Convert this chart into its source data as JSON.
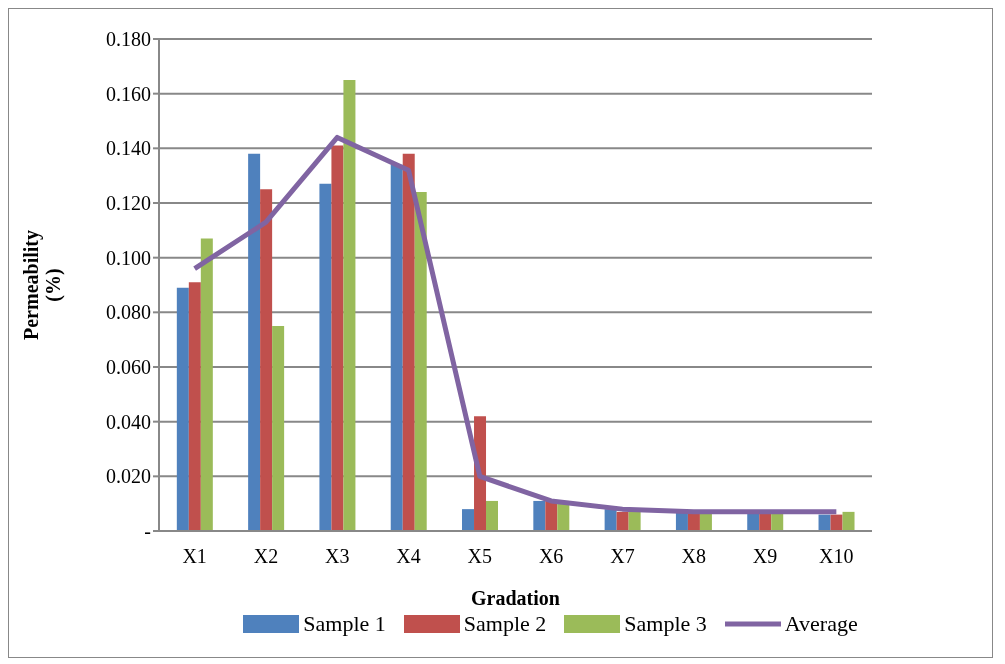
{
  "chart_data": {
    "type": "bar",
    "xlabel": "Gradation",
    "ylabel": "Permeability (%)",
    "categories": [
      "X1",
      "X2",
      "X3",
      "X4",
      "X5",
      "X6",
      "X7",
      "X8",
      "X9",
      "X10"
    ],
    "series": [
      {
        "name": "Sample 1",
        "color": "#4f81bd",
        "values": [
          0.089,
          0.138,
          0.127,
          0.134,
          0.008,
          0.011,
          0.008,
          0.007,
          0.007,
          0.006
        ]
      },
      {
        "name": "Sample 2",
        "color": "#c0504d",
        "values": [
          0.091,
          0.125,
          0.141,
          0.138,
          0.042,
          0.011,
          0.007,
          0.007,
          0.007,
          0.006
        ]
      },
      {
        "name": "Sample 3",
        "color": "#9bbb59",
        "values": [
          0.107,
          0.075,
          0.165,
          0.124,
          0.011,
          0.011,
          0.007,
          0.007,
          0.007,
          0.007
        ]
      },
      {
        "name": "Average",
        "type": "line",
        "color": "#8064a2",
        "values": [
          0.096,
          0.113,
          0.144,
          0.132,
          0.02,
          0.011,
          0.008,
          0.007,
          0.007,
          0.007
        ]
      }
    ],
    "ylim": [
      0,
      0.18
    ],
    "yticks": [
      {
        "value": 0,
        "label": "-"
      },
      {
        "value": 0.02,
        "label": "0.020"
      },
      {
        "value": 0.04,
        "label": "0.040"
      },
      {
        "value": 0.06,
        "label": "0.060"
      },
      {
        "value": 0.08,
        "label": "0.080"
      },
      {
        "value": 0.1,
        "label": "0.100"
      },
      {
        "value": 0.12,
        "label": "0.120"
      },
      {
        "value": 0.14,
        "label": "0.140"
      },
      {
        "value": 0.16,
        "label": "0.160"
      },
      {
        "value": 0.18,
        "label": "0.180"
      }
    ],
    "grid": "y",
    "legend": "bottom",
    "marker": "none"
  }
}
